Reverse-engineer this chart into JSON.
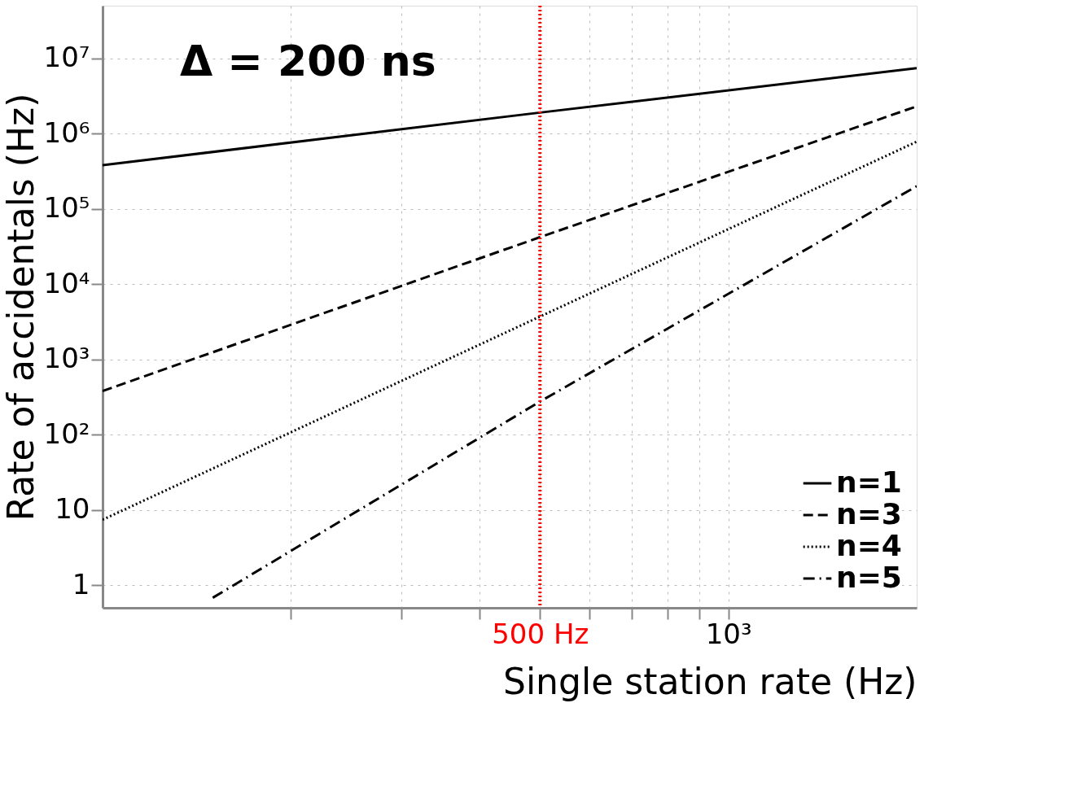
{
  "chart_data": {
    "type": "line",
    "xlabel": "Single station rate (Hz)",
    "ylabel": "Rate of accidentals (Hz)",
    "log": "xy",
    "xlim": [
      100,
      2000
    ],
    "ylim": [
      0.5,
      50000000
    ],
    "xticks": [
      {
        "value": 200,
        "label": null
      },
      {
        "value": 300,
        "label": null
      },
      {
        "value": 400,
        "label": null
      },
      {
        "value": 500,
        "label": "500 Hz"
      },
      {
        "value": 600,
        "label": null
      },
      {
        "value": 700,
        "label": null
      },
      {
        "value": 800,
        "label": null
      },
      {
        "value": 900,
        "label": null
      },
      {
        "value": 1000,
        "label": "10³"
      }
    ],
    "yticks": [
      {
        "value": 1,
        "label": "1"
      },
      {
        "value": 10,
        "label": "10"
      },
      {
        "value": 100,
        "label": "10²"
      },
      {
        "value": 1000,
        "label": "10³"
      },
      {
        "value": 10000,
        "label": "10⁴"
      },
      {
        "value": 100000,
        "label": "10⁵"
      },
      {
        "value": 1000000,
        "label": "10⁶"
      },
      {
        "value": 10000000,
        "label": "10⁷"
      }
    ],
    "grid": true,
    "legend": "bottom right",
    "marker": "none",
    "series": [
      {
        "name": "n=1",
        "color": "#000000",
        "line_style": "solid",
        "x": [
          100,
          500,
          2000
        ],
        "values": [
          380000,
          1900000,
          7400000
        ]
      },
      {
        "name": "n=3",
        "color": "#000000",
        "line_style": "dashed",
        "x": [
          100,
          500,
          2000
        ],
        "values": [
          380,
          42000,
          2300000
        ]
      },
      {
        "name": "n=4",
        "color": "#000000",
        "line_style": "dotted",
        "x": [
          100,
          500,
          2000
        ],
        "values": [
          7.4,
          3700,
          780000
        ]
      },
      {
        "name": "n=5",
        "color": "#000000",
        "line_style": "dashdot",
        "x": [
          150,
          500,
          2000
        ],
        "values": [
          0.68,
          275,
          200000
        ]
      }
    ],
    "ref_lines": [
      {
        "axis": "x",
        "value": 500,
        "color": "#ff0000",
        "line_style": "dotted"
      }
    ],
    "annotations": [
      "Δ = 200 ns"
    ]
  }
}
